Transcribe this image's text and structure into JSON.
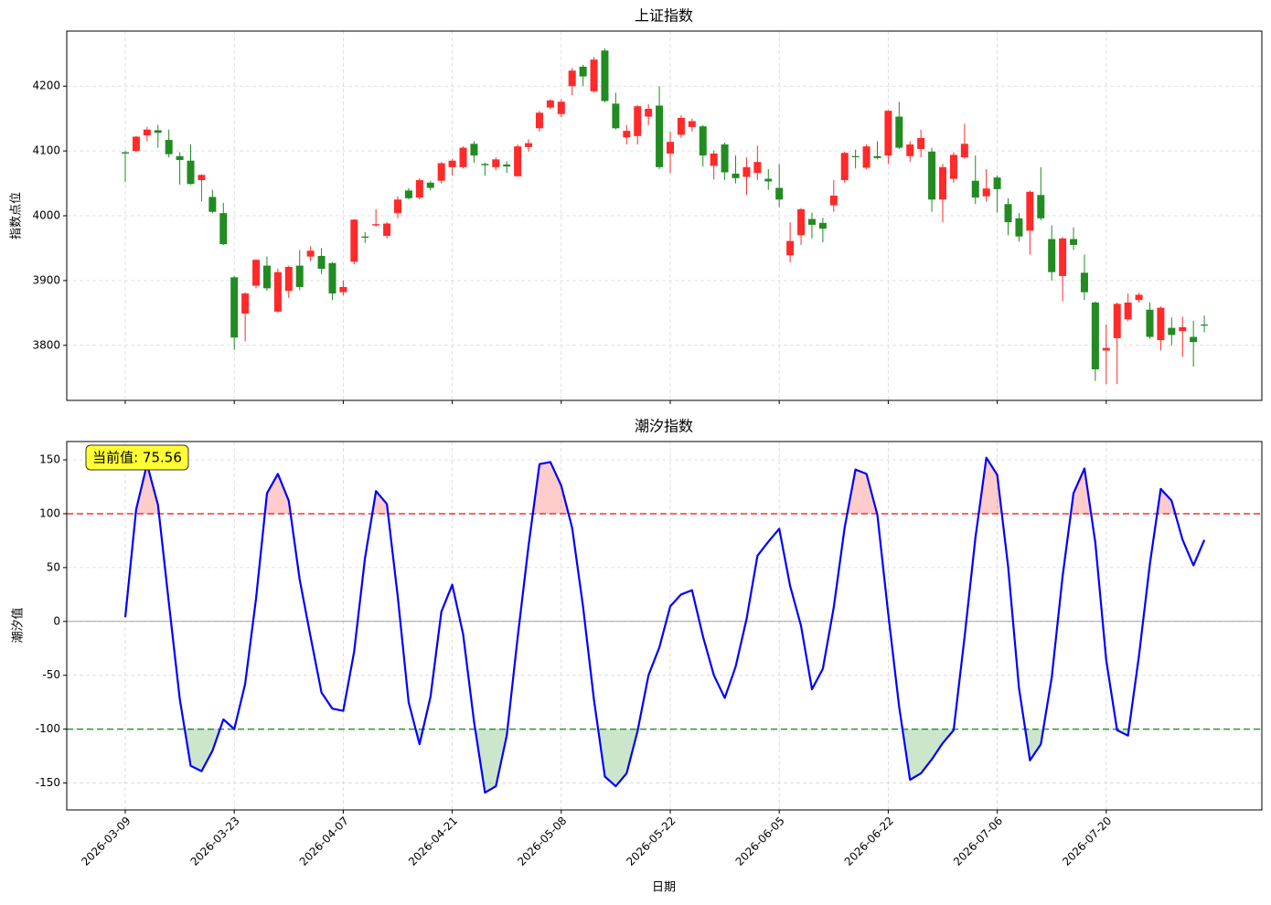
{
  "chart_data": [
    {
      "type": "candlestick",
      "title": "上证指数",
      "ylabel": "指数点位",
      "open": [
        4098,
        4100,
        4124,
        4132,
        4117,
        4092,
        4085,
        4055,
        4029,
        4004,
        3905,
        3849,
        3892,
        3923,
        3852,
        3884,
        3923,
        3937,
        3938,
        3927,
        3882,
        3929,
        3968,
        3985,
        3969,
        4004,
        4039,
        4028,
        4051,
        4054,
        4075,
        4075,
        4111,
        4080,
        4075,
        4079,
        4061,
        4106,
        4135,
        4167,
        4157,
        4200,
        4230,
        4192,
        4255,
        4173,
        4121,
        4123,
        4153,
        4170,
        4096,
        4125,
        4137,
        4138,
        4077,
        4110,
        4065,
        4060,
        4066,
        4057,
        4043,
        3939,
        3970,
        3995,
        3989,
        4016,
        4055,
        4092,
        4074,
        4092,
        4093,
        4153,
        4092,
        4103,
        4099,
        4025,
        4057,
        4090,
        4054,
        4030,
        4059,
        4018,
        3996,
        3977,
        4032,
        3964,
        3907,
        3964,
        3912,
        3866,
        3792,
        3811,
        3840,
        3870,
        3855,
        3808,
        3827,
        3822,
        3813,
        3832
      ],
      "high": [
        4100,
        4123,
        4137,
        4140,
        4133,
        4098,
        4110,
        4064,
        4040,
        4020,
        3907,
        3882,
        3933,
        3937,
        3918,
        3923,
        3947,
        3953,
        3950,
        3928,
        3900,
        3995,
        3975,
        4010,
        3990,
        4030,
        4043,
        4058,
        4054,
        4083,
        4088,
        4107,
        4115,
        4082,
        4090,
        4084,
        4110,
        4118,
        4162,
        4180,
        4180,
        4228,
        4233,
        4245,
        4258,
        4190,
        4140,
        4171,
        4172,
        4200,
        4130,
        4155,
        4150,
        4140,
        4101,
        4113,
        4093,
        4090,
        4108,
        4072,
        4080,
        3990,
        4012,
        4005,
        3997,
        4055,
        4099,
        4102,
        4110,
        4115,
        4163,
        4176,
        4115,
        4133,
        4105,
        4080,
        4098,
        4142,
        4093,
        4072,
        4062,
        4027,
        4004,
        4039,
        4075,
        3985,
        3967,
        3982,
        3940,
        3868,
        3832,
        3866,
        3880,
        3881,
        3866,
        3860,
        3843,
        3844,
        3838,
        3846
      ],
      "low": [
        4052,
        4098,
        4115,
        4105,
        4090,
        4048,
        4048,
        4022,
        4004,
        3955,
        3793,
        3806,
        3888,
        3884,
        3850,
        3873,
        3885,
        3930,
        3910,
        3870,
        3877,
        3925,
        3958,
        3983,
        3965,
        3996,
        4025,
        4025,
        4039,
        4050,
        4062,
        4073,
        4082,
        4062,
        4070,
        4066,
        4060,
        4099,
        4130,
        4164,
        4152,
        4186,
        4200,
        4190,
        4175,
        4133,
        4110,
        4110,
        4140,
        4072,
        4066,
        4120,
        4130,
        4076,
        4056,
        4055,
        4050,
        4032,
        4055,
        4040,
        4013,
        3928,
        3955,
        3965,
        3959,
        4006,
        4051,
        4073,
        4072,
        4087,
        4080,
        4103,
        4083,
        4090,
        4006,
        3990,
        4051,
        4088,
        4018,
        4022,
        4005,
        3970,
        3960,
        3940,
        3993,
        3900,
        3868,
        3947,
        3870,
        3745,
        3740,
        3740,
        3837,
        3866,
        3810,
        3792,
        3800,
        3782,
        3767,
        3820
      ],
      "close": [
        4096,
        4122,
        4133,
        4128,
        4095,
        4086,
        4049,
        4063,
        4006,
        3956,
        3812,
        3880,
        3932,
        3888,
        3913,
        3921,
        3890,
        3946,
        3918,
        3880,
        3890,
        3994,
        3966,
        3987,
        3988,
        4025,
        4027,
        4055,
        4043,
        4081,
        4085,
        4105,
        4093,
        4078,
        4087,
        4076,
        4107,
        4112,
        4159,
        4178,
        4176,
        4224,
        4215,
        4241,
        4177,
        4135,
        4131,
        4169,
        4165,
        4075,
        4114,
        4151,
        4146,
        4093,
        4096,
        4067,
        4058,
        4075,
        4083,
        4053,
        4025,
        3961,
        4010,
        3986,
        3980,
        4031,
        4097,
        4091,
        4107,
        4089,
        4162,
        4105,
        4110,
        4120,
        4025,
        4075,
        4094,
        4111,
        4028,
        4042,
        4041,
        3990,
        3968,
        4037,
        3996,
        3913,
        3965,
        3955,
        3882,
        3763,
        3796,
        3864,
        3866,
        3878,
        3813,
        3858,
        3816,
        3828,
        3805,
        3831
      ],
      "up_color": "#ff2a2a",
      "down_color": "#228b22",
      "ylim": [
        3715,
        4285
      ],
      "yticks": [
        3800,
        3900,
        4000,
        4100,
        4200
      ],
      "grid": true
    },
    {
      "type": "line",
      "title": "潮汐指数",
      "ylabel": "潮汐值",
      "xlabel": "日期",
      "categories": [
        "2026-03-09",
        null,
        null,
        null,
        null,
        null,
        null,
        null,
        null,
        null,
        "2026-03-23",
        null,
        null,
        null,
        null,
        null,
        null,
        null,
        null,
        null,
        "2026-04-07",
        null,
        null,
        null,
        null,
        null,
        null,
        null,
        null,
        null,
        "2026-04-21",
        null,
        null,
        null,
        null,
        null,
        null,
        null,
        null,
        null,
        "2026-05-08",
        null,
        null,
        null,
        null,
        null,
        null,
        null,
        null,
        null,
        "2026-05-22",
        null,
        null,
        null,
        null,
        null,
        null,
        null,
        null,
        null,
        "2026-06-05",
        null,
        null,
        null,
        null,
        null,
        null,
        null,
        null,
        null,
        "2026-06-22",
        null,
        null,
        null,
        null,
        null,
        null,
        null,
        null,
        null,
        "2026-07-06",
        null,
        null,
        null,
        null,
        null,
        null,
        null,
        null,
        null,
        "2026-07-20",
        null,
        null,
        null,
        null,
        null,
        null,
        null,
        null,
        null
      ],
      "series": [
        {
          "name": "潮汐指数",
          "color": "#0000ff",
          "values": [
            4,
            104,
            146,
            108,
            17,
            -72,
            -134,
            -139,
            -120,
            -91,
            -100,
            -58,
            21,
            119,
            137,
            112,
            39,
            -14,
            -66,
            -81,
            -83,
            -28,
            59,
            121,
            109,
            23,
            -75,
            -114,
            -70,
            9,
            34,
            -12,
            -93,
            -159,
            -153,
            -106,
            -15,
            70,
            146,
            148,
            126,
            87,
            14,
            -73,
            -144,
            -153,
            -141,
            -102,
            -50,
            -24,
            14,
            25,
            29,
            -14,
            -50,
            -71,
            -42,
            2,
            61,
            74,
            86,
            33,
            -4,
            -63,
            -44,
            13,
            87,
            141,
            137,
            99,
            7,
            -79,
            -147,
            -141,
            -128,
            -113,
            -101,
            -15,
            78,
            152,
            136,
            51,
            -62,
            -129,
            -114,
            -52,
            42,
            119,
            142,
            73,
            -36,
            -101,
            -106,
            -32,
            53,
            123,
            112,
            76,
            52,
            75.56
          ]
        }
      ],
      "hlines": [
        {
          "value": 100,
          "color": "#ff0000",
          "fill": true
        },
        {
          "value": -100,
          "color": "#008000",
          "fill": true
        },
        {
          "value": 0,
          "color": "#808080",
          "fill": false
        }
      ],
      "annotation": "当前值: 75.56",
      "ylim": [
        -175,
        167
      ],
      "yticks": [
        -150,
        -100,
        -50,
        0,
        50,
        100,
        150
      ],
      "grid": true
    }
  ]
}
